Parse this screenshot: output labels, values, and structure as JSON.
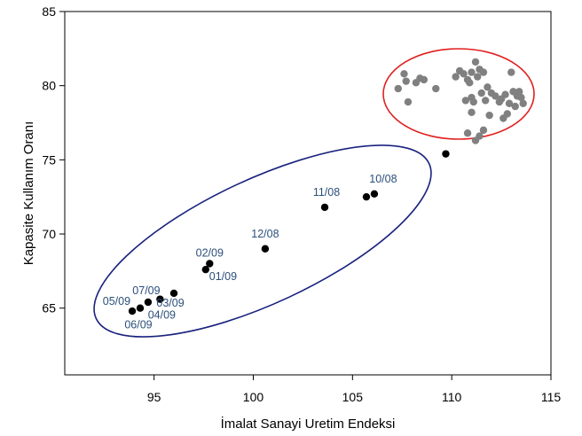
{
  "chart_data": {
    "type": "scatter",
    "title": "",
    "xlabel": "İmalat Sanayi Uretim Endeksi",
    "ylabel": "Kapasite Kullanım Oranı",
    "xlim": [
      90.5,
      115
    ],
    "ylim": [
      60.5,
      85
    ],
    "xticks": [
      95,
      100,
      105,
      110,
      115
    ],
    "xtick_labels": [
      "95",
      "100",
      "105",
      "110",
      "115"
    ],
    "yticks": [
      65,
      70,
      75,
      80,
      85
    ],
    "ytick_labels": [
      "65",
      "70",
      "75",
      "80",
      "85"
    ],
    "grid": false,
    "legend": "none",
    "colors": {
      "labeled_points": "#000000",
      "cluster_points": "#808080",
      "label_text": "#2b4f7a",
      "crisis_ellipse": "#1a237e",
      "cluster_ellipse": "#e02020"
    },
    "series": [
      {
        "points": [
          {
            "x": 106.1,
            "y": 72.7,
            "label": "10/08"
          },
          {
            "x": 105.7,
            "y": 72.5,
            "label": ""
          },
          {
            "x": 103.6,
            "y": 71.8,
            "label": "11/08"
          },
          {
            "x": 100.6,
            "y": 69.0,
            "label": "12/08"
          },
          {
            "x": 97.8,
            "y": 68.0,
            "label": "02/09"
          },
          {
            "x": 97.6,
            "y": 67.6,
            "label": "01/09"
          },
          {
            "x": 96.0,
            "y": 66.0,
            "label": "03/09"
          },
          {
            "x": 95.3,
            "y": 65.6,
            "label": "04/09"
          },
          {
            "x": 94.7,
            "y": 65.4,
            "label": "07/09"
          },
          {
            "x": 94.3,
            "y": 65.0,
            "label": "06/09"
          },
          {
            "x": 93.9,
            "y": 64.8,
            "label": "05/09"
          },
          {
            "x": 109.7,
            "y": 75.4,
            "label": ""
          }
        ]
      },
      {
        "points": [
          {
            "x": 107.3,
            "y": 79.8
          },
          {
            "x": 107.6,
            "y": 80.8
          },
          {
            "x": 107.7,
            "y": 80.3
          },
          {
            "x": 107.8,
            "y": 78.9
          },
          {
            "x": 108.2,
            "y": 80.2
          },
          {
            "x": 108.4,
            "y": 80.5
          },
          {
            "x": 108.6,
            "y": 80.4
          },
          {
            "x": 109.2,
            "y": 79.8
          },
          {
            "x": 110.2,
            "y": 80.6
          },
          {
            "x": 110.4,
            "y": 81.0
          },
          {
            "x": 110.6,
            "y": 80.8
          },
          {
            "x": 110.8,
            "y": 80.4
          },
          {
            "x": 111.0,
            "y": 80.9
          },
          {
            "x": 111.2,
            "y": 81.6
          },
          {
            "x": 111.4,
            "y": 81.1
          },
          {
            "x": 111.6,
            "y": 80.9
          },
          {
            "x": 111.3,
            "y": 80.6
          },
          {
            "x": 110.9,
            "y": 80.2
          },
          {
            "x": 110.7,
            "y": 79.0
          },
          {
            "x": 111.0,
            "y": 79.2
          },
          {
            "x": 111.5,
            "y": 79.5
          },
          {
            "x": 111.8,
            "y": 79.9
          },
          {
            "x": 111.1,
            "y": 78.9
          },
          {
            "x": 111.7,
            "y": 79.0
          },
          {
            "x": 112.2,
            "y": 79.3
          },
          {
            "x": 112.5,
            "y": 79.1
          },
          {
            "x": 112.7,
            "y": 79.4
          },
          {
            "x": 112.9,
            "y": 78.8
          },
          {
            "x": 112.8,
            "y": 78.1
          },
          {
            "x": 112.6,
            "y": 77.8
          },
          {
            "x": 113.1,
            "y": 79.6
          },
          {
            "x": 113.3,
            "y": 79.3
          },
          {
            "x": 113.5,
            "y": 79.2
          },
          {
            "x": 113.6,
            "y": 78.8
          },
          {
            "x": 113.2,
            "y": 78.6
          },
          {
            "x": 113.0,
            "y": 80.9
          },
          {
            "x": 113.4,
            "y": 79.6
          },
          {
            "x": 110.8,
            "y": 76.8
          },
          {
            "x": 111.4,
            "y": 76.6
          },
          {
            "x": 111.6,
            "y": 77.0
          },
          {
            "x": 111.2,
            "y": 76.3
          },
          {
            "x": 111.0,
            "y": 78.2
          },
          {
            "x": 111.9,
            "y": 78.0
          },
          {
            "x": 112.0,
            "y": 79.5
          },
          {
            "x": 112.4,
            "y": 78.9
          }
        ]
      }
    ],
    "annotations": [
      {
        "shape": "ellipse",
        "color": "blue",
        "around": "2008-2009 labeled points"
      },
      {
        "shape": "ellipse",
        "color": "red",
        "around": "upper-right cluster"
      }
    ]
  }
}
